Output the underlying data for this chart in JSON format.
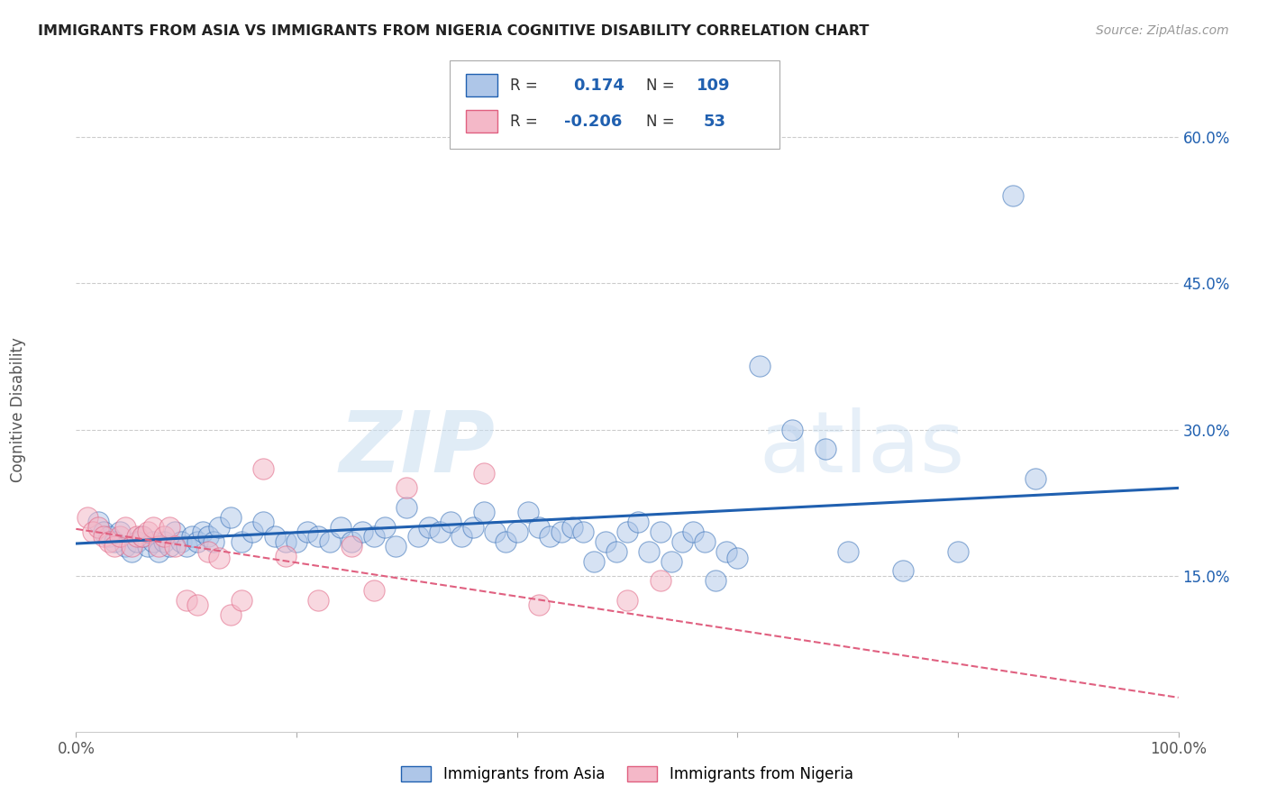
{
  "title": "IMMIGRANTS FROM ASIA VS IMMIGRANTS FROM NIGERIA COGNITIVE DISABILITY CORRELATION CHART",
  "source": "Source: ZipAtlas.com",
  "ylabel": "Cognitive Disability",
  "xlim": [
    0.0,
    1.0
  ],
  "ylim": [
    -0.01,
    0.65
  ],
  "x_ticks": [
    0.0,
    0.2,
    0.4,
    0.6,
    0.8,
    1.0
  ],
  "x_tick_labels": [
    "0.0%",
    "",
    "",
    "",
    "",
    "100.0%"
  ],
  "y_ticks": [
    0.15,
    0.3,
    0.45,
    0.6
  ],
  "y_tick_labels": [
    "15.0%",
    "30.0%",
    "45.0%",
    "60.0%"
  ],
  "legend_asia_R": "0.174",
  "legend_asia_N": "109",
  "legend_nigeria_R": "-0.206",
  "legend_nigeria_N": "53",
  "color_asia": "#aec6e8",
  "color_nigeria": "#f4b8c8",
  "trendline_asia_color": "#2060b0",
  "trendline_nigeria_color": "#e06080",
  "background_color": "#ffffff",
  "watermark_zip": "ZIP",
  "watermark_atlas": "atlas",
  "asia_scatter_x": [
    0.02,
    0.025,
    0.03,
    0.035,
    0.04,
    0.045,
    0.05,
    0.055,
    0.06,
    0.065,
    0.07,
    0.075,
    0.08,
    0.085,
    0.09,
    0.095,
    0.1,
    0.105,
    0.11,
    0.115,
    0.12,
    0.125,
    0.13,
    0.14,
    0.15,
    0.16,
    0.17,
    0.18,
    0.19,
    0.2,
    0.21,
    0.22,
    0.23,
    0.24,
    0.25,
    0.26,
    0.27,
    0.28,
    0.29,
    0.3,
    0.31,
    0.32,
    0.33,
    0.34,
    0.35,
    0.36,
    0.37,
    0.38,
    0.39,
    0.4,
    0.41,
    0.42,
    0.43,
    0.44,
    0.45,
    0.46,
    0.47,
    0.48,
    0.49,
    0.5,
    0.51,
    0.52,
    0.53,
    0.54,
    0.55,
    0.56,
    0.57,
    0.58,
    0.59,
    0.6,
    0.62,
    0.65,
    0.68,
    0.7,
    0.75,
    0.8,
    0.85,
    0.87
  ],
  "asia_scatter_y": [
    0.205,
    0.195,
    0.19,
    0.185,
    0.195,
    0.18,
    0.175,
    0.185,
    0.19,
    0.18,
    0.185,
    0.175,
    0.185,
    0.18,
    0.195,
    0.185,
    0.18,
    0.19,
    0.185,
    0.195,
    0.19,
    0.185,
    0.2,
    0.21,
    0.185,
    0.195,
    0.205,
    0.19,
    0.185,
    0.185,
    0.195,
    0.19,
    0.185,
    0.2,
    0.185,
    0.195,
    0.19,
    0.2,
    0.18,
    0.22,
    0.19,
    0.2,
    0.195,
    0.205,
    0.19,
    0.2,
    0.215,
    0.195,
    0.185,
    0.195,
    0.215,
    0.2,
    0.19,
    0.195,
    0.2,
    0.195,
    0.165,
    0.185,
    0.175,
    0.195,
    0.205,
    0.175,
    0.195,
    0.165,
    0.185,
    0.195,
    0.185,
    0.145,
    0.175,
    0.168,
    0.365,
    0.3,
    0.28,
    0.175,
    0.155,
    0.175,
    0.54,
    0.25
  ],
  "nigeria_scatter_x": [
    0.01,
    0.015,
    0.02,
    0.025,
    0.03,
    0.035,
    0.04,
    0.045,
    0.05,
    0.055,
    0.06,
    0.065,
    0.07,
    0.075,
    0.08,
    0.085,
    0.09,
    0.1,
    0.11,
    0.12,
    0.13,
    0.14,
    0.15,
    0.17,
    0.19,
    0.22,
    0.25,
    0.27,
    0.3,
    0.37,
    0.42,
    0.5,
    0.53
  ],
  "nigeria_scatter_y": [
    0.21,
    0.195,
    0.2,
    0.19,
    0.185,
    0.18,
    0.19,
    0.2,
    0.18,
    0.19,
    0.19,
    0.195,
    0.2,
    0.18,
    0.19,
    0.2,
    0.18,
    0.125,
    0.12,
    0.175,
    0.168,
    0.11,
    0.125,
    0.26,
    0.17,
    0.125,
    0.18,
    0.135,
    0.24,
    0.255,
    0.12,
    0.125,
    0.145
  ],
  "asia_trend_y_start": 0.183,
  "asia_trend_y_end": 0.24,
  "nigeria_trend_y_start": 0.198,
  "nigeria_trend_y_end": 0.025
}
